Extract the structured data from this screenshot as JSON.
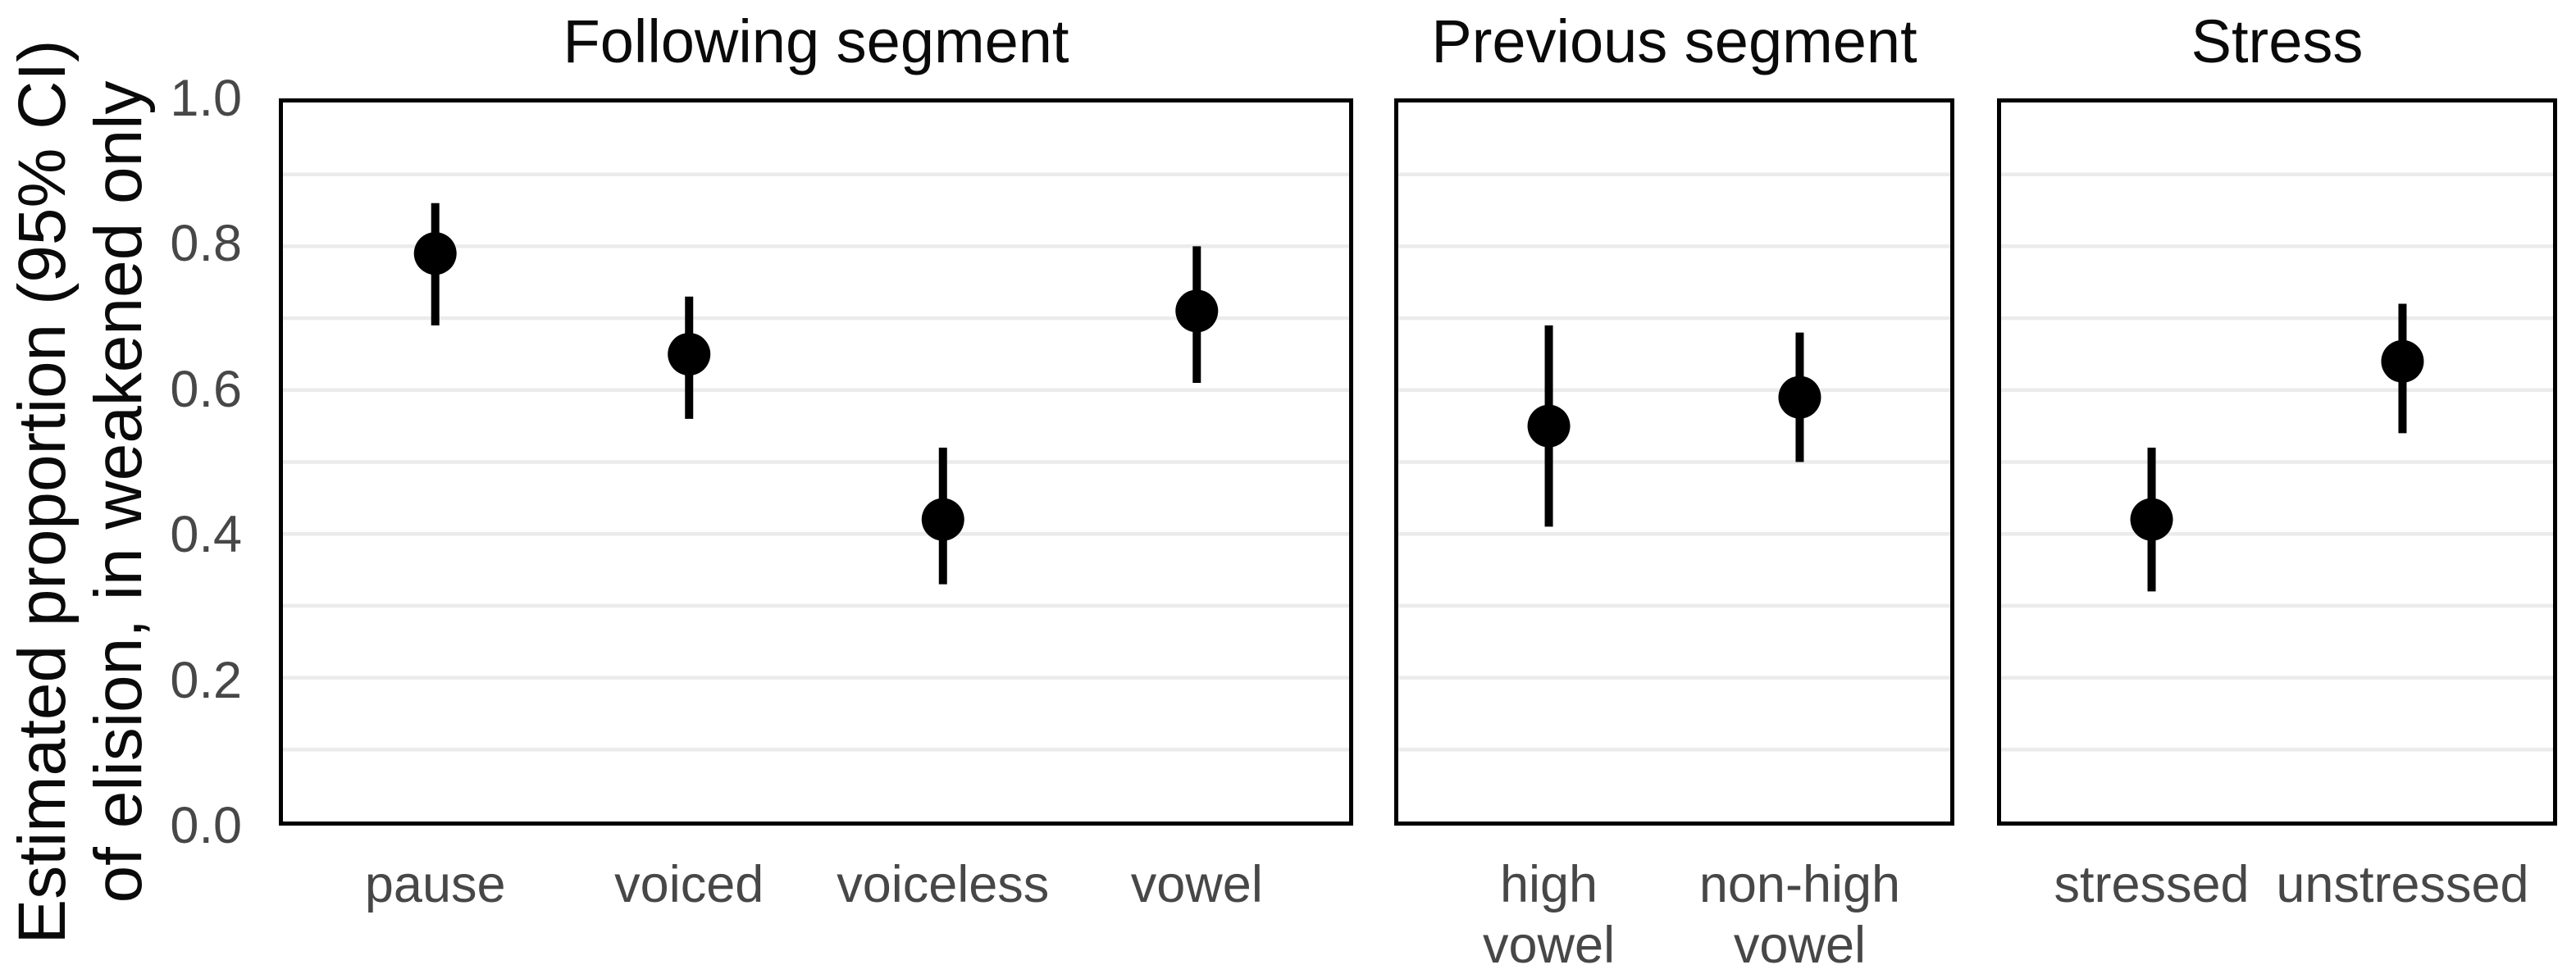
{
  "chart_data": {
    "type": "pointrange",
    "facets": true,
    "background": "#ffffff",
    "ylabel": {
      "line1": "Estimated proportion (95% CI)",
      "line2": "of elision, in weakened only"
    },
    "ylim": [
      0,
      1
    ],
    "ytick_values": [
      1.0,
      0.8,
      0.6,
      0.4,
      0.2,
      0.0
    ],
    "ytick_labels": [
      "1.0",
      "0.8",
      "0.6",
      "0.4",
      "0.2",
      "0.0"
    ],
    "grid": {
      "horizontal_step": 0.1,
      "color": "#ebebeb",
      "vertical_gridlines": false
    },
    "legend": "none",
    "colors": {
      "point": "#000000",
      "panel_border": "#000000",
      "axis_text": "#474747",
      "title_text": "#0a0a0a"
    },
    "panels": [
      {
        "title": "Following segment",
        "categories": [
          {
            "label_lines": [
              "pause"
            ],
            "estimate": 0.79,
            "ci_low": 0.69,
            "ci_high": 0.86
          },
          {
            "label_lines": [
              "voiced"
            ],
            "estimate": 0.65,
            "ci_low": 0.56,
            "ci_high": 0.73
          },
          {
            "label_lines": [
              "voiceless"
            ],
            "estimate": 0.42,
            "ci_low": 0.33,
            "ci_high": 0.52
          },
          {
            "label_lines": [
              "vowel"
            ],
            "estimate": 0.71,
            "ci_low": 0.61,
            "ci_high": 0.8
          }
        ]
      },
      {
        "title": "Previous segment",
        "categories": [
          {
            "label_lines": [
              "high",
              "vowel"
            ],
            "estimate": 0.55,
            "ci_low": 0.41,
            "ci_high": 0.69
          },
          {
            "label_lines": [
              "non-high",
              "vowel"
            ],
            "estimate": 0.59,
            "ci_low": 0.5,
            "ci_high": 0.68
          }
        ]
      },
      {
        "title": "Stress",
        "categories": [
          {
            "label_lines": [
              "stressed"
            ],
            "estimate": 0.42,
            "ci_low": 0.32,
            "ci_high": 0.52
          },
          {
            "label_lines": [
              "unstressed"
            ],
            "estimate": 0.64,
            "ci_low": 0.54,
            "ci_high": 0.72
          }
        ]
      }
    ]
  }
}
